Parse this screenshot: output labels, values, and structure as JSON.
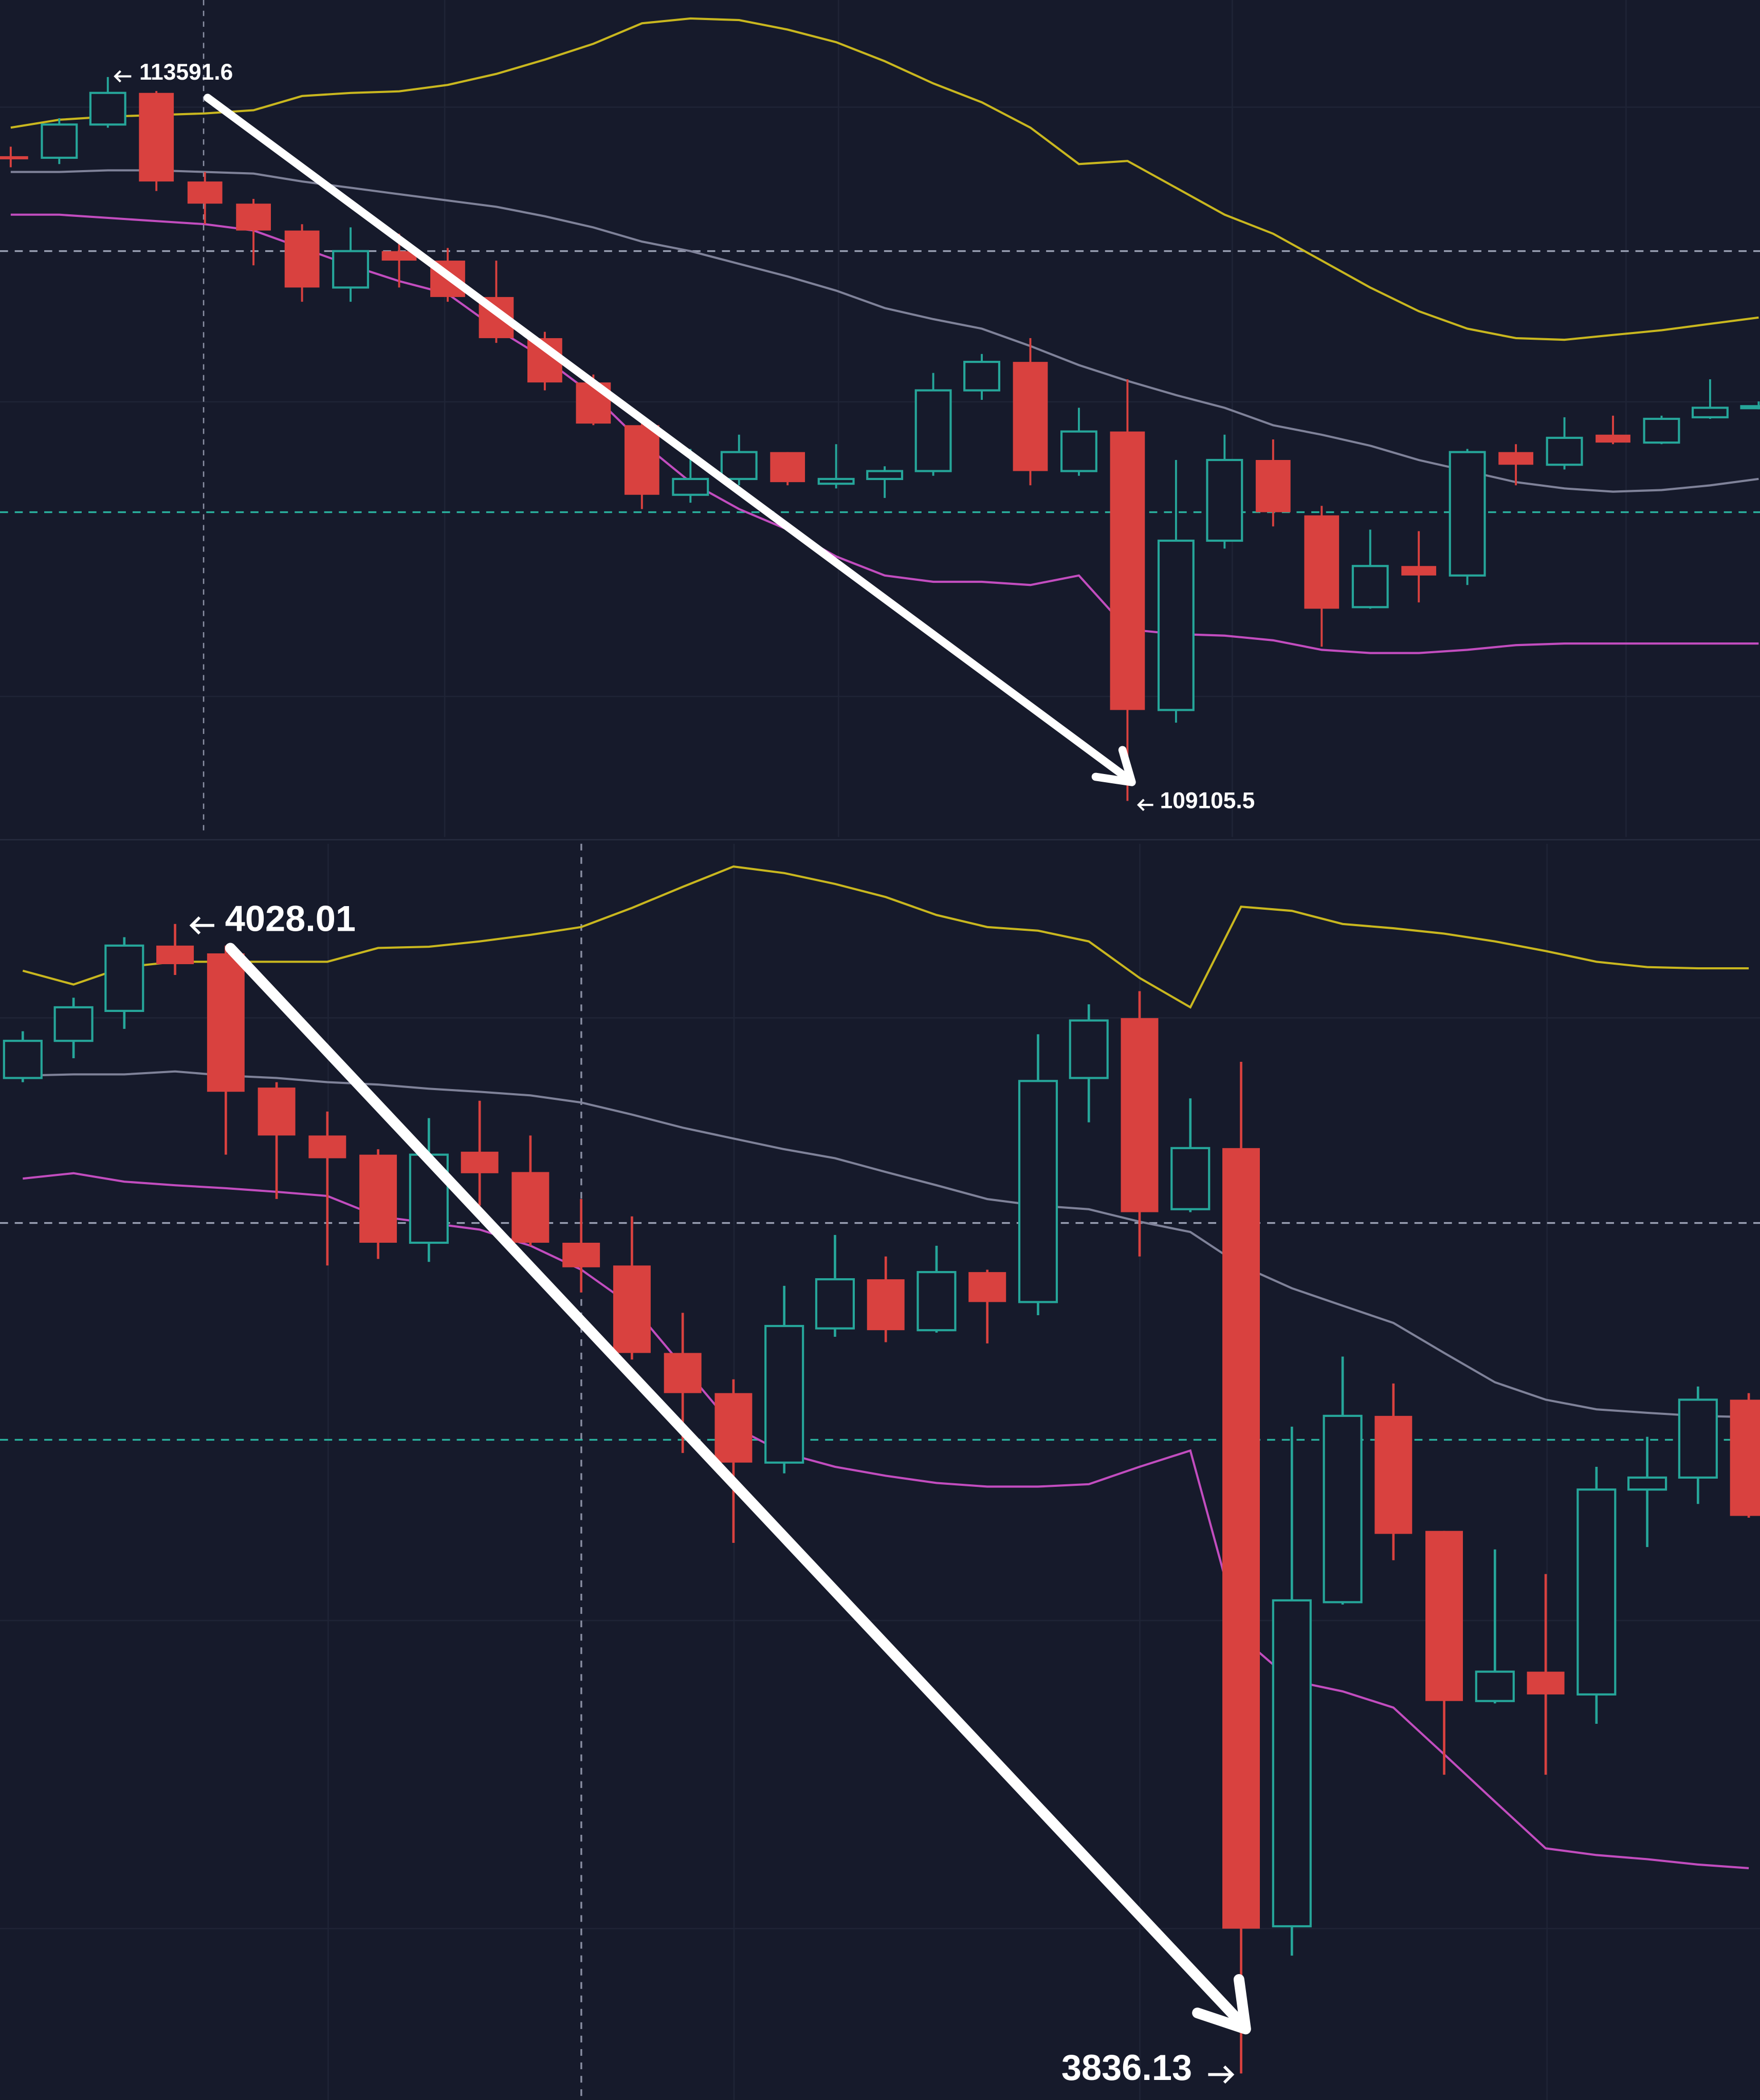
{
  "chart_data": [
    {
      "type": "candlestick",
      "ylim": [
        108877,
        114167
      ],
      "up_color": "#26a69a",
      "down_color": "#d9413f",
      "open": [
        113180,
        113170,
        113380,
        113580,
        113020,
        112880,
        112710,
        112350,
        112580,
        112520,
        112290,
        112030,
        111750,
        111480,
        111040,
        111140,
        111310,
        111110,
        111140,
        111190,
        111700,
        111880,
        111190,
        111440,
        109680,
        110750,
        111260,
        110910,
        110330,
        110590,
        110530,
        111310,
        111230,
        111420,
        111370,
        111530,
        111590
      ],
      "high": [
        113240,
        113420,
        113680,
        113591.6,
        113080,
        112910,
        112750,
        112730,
        112690,
        112600,
        112520,
        112070,
        111800,
        111500,
        111330,
        111420,
        111310,
        111360,
        111220,
        111810,
        111930,
        112030,
        111590,
        111770,
        111260,
        111420,
        111390,
        110970,
        110820,
        110810,
        111330,
        111360,
        111530,
        111540,
        111540,
        111770,
        111630
      ],
      "low": [
        113110,
        113130,
        113360,
        112960,
        112750,
        112490,
        112260,
        112260,
        112350,
        112260,
        112000,
        111700,
        111480,
        110950,
        110990,
        111100,
        111100,
        111080,
        111020,
        111160,
        111640,
        111100,
        111160,
        109105.5,
        109600,
        110700,
        110840,
        110080,
        110320,
        110360,
        110470,
        111100,
        111200,
        111360,
        111360,
        111520,
        111580
      ],
      "close": [
        113160,
        113380,
        113580,
        113020,
        112880,
        112710,
        112350,
        112580,
        112520,
        112290,
        112030,
        111750,
        111490,
        111040,
        111140,
        111310,
        111120,
        111140,
        111190,
        111700,
        111880,
        111190,
        111440,
        109680,
        110750,
        111260,
        110930,
        110320,
        110590,
        110530,
        111310,
        111230,
        111400,
        111370,
        111520,
        111590,
        111600
      ],
      "series": [
        {
          "color": "#c9b71f",
          "values": [
            113360,
            113410,
            113430,
            113440,
            113450,
            113470,
            113560,
            113580,
            113590,
            113630,
            113700,
            113790,
            113890,
            114020,
            114050,
            114040,
            113980,
            113900,
            113780,
            113640,
            113520,
            113360,
            113130,
            113150,
            112980,
            112810,
            112690,
            112520,
            112350,
            112200,
            112090,
            112030,
            112020,
            112050,
            112080,
            112120,
            112160
          ]
        },
        {
          "color": "#7f8299",
          "values": [
            113080,
            113080,
            113090,
            113090,
            113080,
            113070,
            113020,
            112980,
            112940,
            112900,
            112860,
            112800,
            112730,
            112640,
            112580,
            112500,
            112420,
            112330,
            112220,
            112150,
            112090,
            111980,
            111860,
            111760,
            111670,
            111590,
            111480,
            111420,
            111350,
            111260,
            111190,
            111120,
            111080,
            111060,
            111070,
            111100,
            111140
          ]
        },
        {
          "color": "#c24dbf",
          "values": [
            112810,
            112810,
            112790,
            112770,
            112750,
            112710,
            112600,
            112490,
            112390,
            112310,
            112090,
            111900,
            111670,
            111370,
            111120,
            110950,
            110820,
            110650,
            110530,
            110490,
            110490,
            110470,
            110530,
            110190,
            110160,
            110150,
            110120,
            110060,
            110040,
            110040,
            110060,
            110090,
            110100,
            110100,
            110100,
            110100,
            110100
          ]
        }
      ],
      "price_lines": [
        {
          "value": 112580,
          "color": "#9aa0b4"
        },
        {
          "value": 110930,
          "color": "#2ab39f"
        }
      ]
    },
    {
      "type": "candlestick",
      "ylim": [
        3831.7,
        4041.4
      ],
      "up_color": "#26a69a",
      "down_color": "#d9413f",
      "open": [
        4002.3,
        4008.5,
        4013.5,
        4024.4,
        4023.1,
        4000.7,
        3992.7,
        3989.5,
        3974.8,
        3990.0,
        3986.6,
        3974.8,
        3971.0,
        3956.4,
        3949.7,
        3938.1,
        3960.5,
        3968.7,
        3960.2,
        3969.9,
        3964.9,
        4002.3,
        4012.3,
        3980.4,
        3990.6,
        3860.7,
        3914.8,
        3945.9,
        3926.7,
        3898.3,
        3903.2,
        3899.4,
        3933.6,
        3935.6,
        3948.6
      ],
      "high": [
        4010.1,
        4015.7,
        4025.8,
        4028.01,
        4024.4,
        4001.6,
        3996.7,
        3990.4,
        3995.6,
        3998.5,
        3992.7,
        3982.1,
        3979.2,
        3963.1,
        3952.0,
        3967.6,
        3976.1,
        3972.5,
        3974.3,
        3970.3,
        4009.6,
        4014.6,
        4016.8,
        3998.9,
        4005.0,
        3944.1,
        3955.8,
        3951.3,
        3926.7,
        3923.6,
        3919.5,
        3937.4,
        3942.4,
        3950.8,
        3949.7
      ],
      "low": [
        4001.6,
        4005.6,
        4010.5,
        4019.5,
        3989.5,
        3982.1,
        3971.0,
        3972.1,
        3971.6,
        3981.0,
        3974.3,
        3966.5,
        3955.3,
        3939.7,
        3924.7,
        3936.3,
        3959.1,
        3958.2,
        3959.8,
        3958.0,
        3962.7,
        3994.9,
        3972.5,
        3979.9,
        3836.13,
        3855.8,
        3914.4,
        3921.8,
        3886.0,
        3897.9,
        3886.0,
        3894.5,
        3924.0,
        3931.2,
        3928.9
      ],
      "close": [
        4008.5,
        4014.1,
        4024.4,
        4021.3,
        4000.0,
        3992.7,
        3988.9,
        3974.8,
        3989.5,
        3986.4,
        3974.8,
        3970.7,
        3956.4,
        3949.7,
        3938.1,
        3960.9,
        3968.7,
        3960.2,
        3969.9,
        3964.9,
        4001.8,
        4011.9,
        3979.9,
        3990.6,
        3860.3,
        3915.1,
        3945.9,
        3926.2,
        3898.3,
        3903.2,
        3899.4,
        3933.6,
        3935.6,
        3948.6,
        3929.2
      ],
      "series": [
        {
          "color": "#c9b71f",
          "values": [
            4020.2,
            4017.9,
            4020.8,
            4021.7,
            4021.7,
            4021.7,
            4021.7,
            4024.0,
            4024.2,
            4025.1,
            4026.2,
            4027.5,
            4030.7,
            4034.2,
            4037.6,
            4036.5,
            4034.7,
            4032.5,
            4029.5,
            4027.5,
            4026.9,
            4025.1,
            4019.0,
            4014.1,
            4030.9,
            4030.2,
            4028.0,
            4027.3,
            4026.4,
            4025.1,
            4023.5,
            4021.7,
            4020.8,
            4020.6,
            4020.6
          ]
        },
        {
          "color": "#7f8299",
          "values": [
            4002.7,
            4002.9,
            4002.9,
            4003.4,
            4002.7,
            4002.3,
            4001.6,
            4001.2,
            4000.5,
            4000.0,
            3999.4,
            3998.2,
            3996.2,
            3994.0,
            3992.2,
            3990.4,
            3988.9,
            3986.6,
            3984.4,
            3982.1,
            3981.0,
            3980.4,
            3978.3,
            3976.6,
            3971.0,
            3967.2,
            3964.3,
            3961.4,
            3956.4,
            3951.5,
            3948.6,
            3947.0,
            3946.4,
            3945.9,
            3945.7
          ]
        },
        {
          "color": "#c24dbf",
          "values": [
            3985.5,
            3986.4,
            3985.0,
            3984.4,
            3983.9,
            3983.3,
            3982.6,
            3979.2,
            3978.1,
            3977.0,
            3974.3,
            3970.3,
            3964.3,
            3954.2,
            3944.1,
            3939.7,
            3937.4,
            3935.9,
            3934.7,
            3934.1,
            3934.1,
            3934.5,
            3937.4,
            3940.1,
            3909.0,
            3901.7,
            3899.9,
            3897.2,
            3889.4,
            3881.5,
            3873.7,
            3872.6,
            3871.9,
            3871.0,
            3870.4
          ]
        }
      ],
      "price_lines": [
        {
          "value": 3978.1,
          "color": "#9aa0b4"
        },
        {
          "value": 3941.9,
          "color": "#2ab39f"
        }
      ]
    }
  ]
}
